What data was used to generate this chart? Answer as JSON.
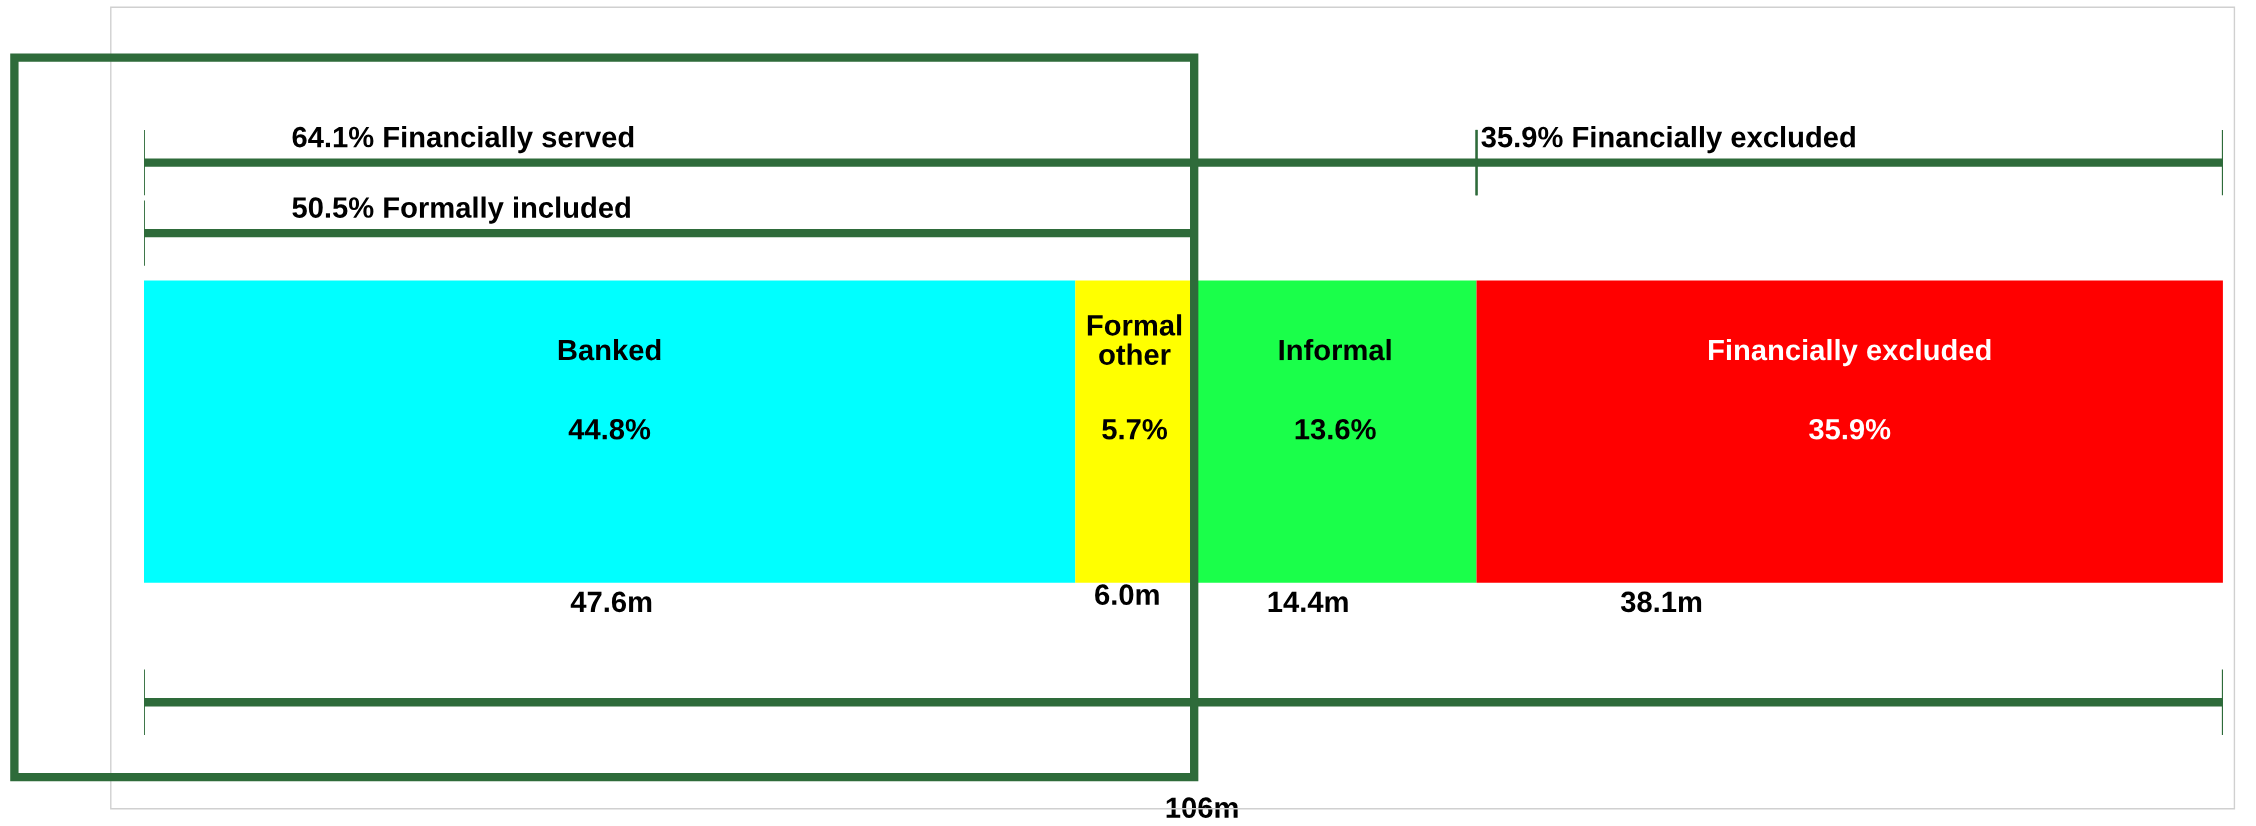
{
  "chart_data": {
    "type": "bar",
    "orientation": "horizontal",
    "stacked": true,
    "categories": [
      null
    ],
    "xlim": [
      0,
      100
    ],
    "tick_labels": false,
    "legend": false,
    "series": [
      {
        "name": "Banked",
        "color": "#00ffff",
        "values": [
          44.8
        ],
        "value_labels": [
          "44.8%"
        ]
      },
      {
        "name": "Formal other",
        "color": "#ffff00",
        "values": [
          5.7
        ],
        "value_labels": [
          "5.7%"
        ]
      },
      {
        "name": "Informal",
        "color": "#1aff4a",
        "values": [
          13.6
        ],
        "value_labels": [
          "13.6%"
        ]
      },
      {
        "name": "Financially excluded",
        "color": "#ff0000",
        "values": [
          35.9
        ],
        "value_labels": [
          "35.9%"
        ]
      }
    ],
    "annotations": [
      "64.1% Financially served",
      "35.9% Financially excluded",
      "50.5% Formally included",
      "47.6m",
      "6.0m",
      "14.4m",
      "38.1m",
      "106m"
    ]
  }
}
